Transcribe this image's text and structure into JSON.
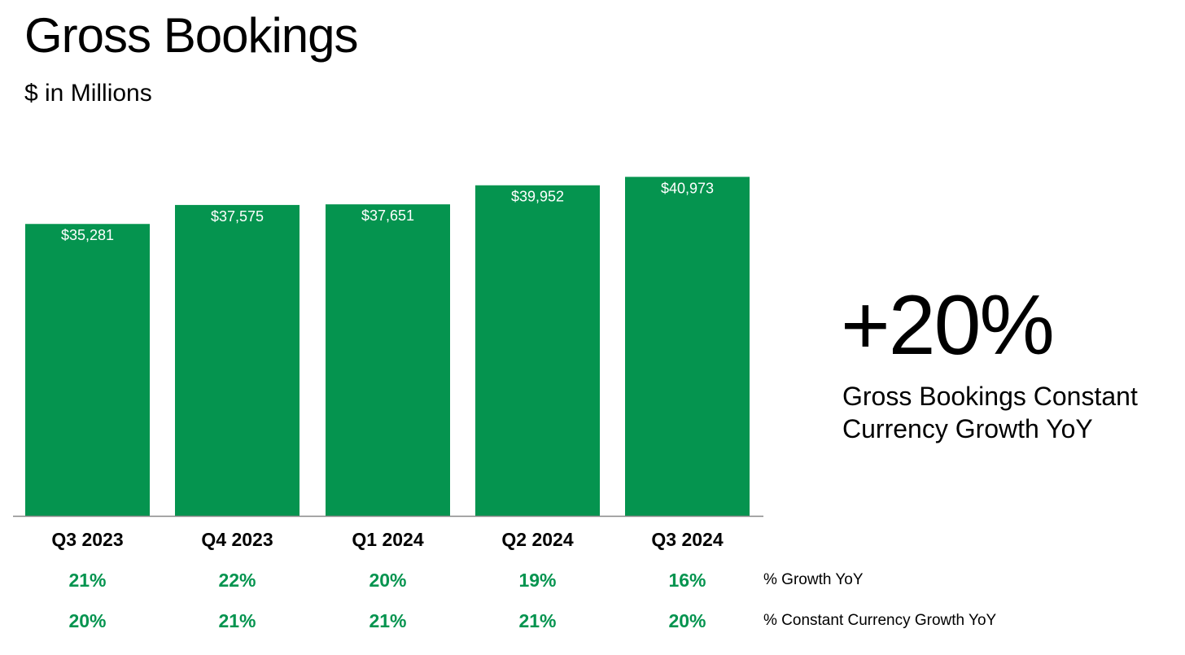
{
  "title": "Gross Bookings",
  "subtitle": "$ in Millions",
  "chart_data": {
    "type": "bar",
    "title": "Gross Bookings",
    "subtitle": "$ in Millions",
    "categories": [
      "Q3 2023",
      "Q4 2023",
      "Q1 2024",
      "Q2 2024",
      "Q3 2024"
    ],
    "values": [
      35281,
      37575,
      37651,
      39952,
      40973
    ],
    "value_labels": [
      "$35,281",
      "$37,575",
      "$37,651",
      "$39,952",
      "$40,973"
    ],
    "ylim": [
      0,
      41500
    ],
    "grid": false,
    "bar_color": "#05944F",
    "rows": [
      {
        "label": "% Growth YoY",
        "values": [
          "21%",
          "22%",
          "20%",
          "19%",
          "16%"
        ]
      },
      {
        "label": "% Constant Currency Growth YoY",
        "values": [
          "20%",
          "21%",
          "21%",
          "21%",
          "20%"
        ]
      }
    ]
  },
  "headline": {
    "value": "+20%",
    "caption": "Gross Bookings Constant Currency Growth YoY"
  },
  "colors": {
    "accent": "#05944F",
    "text": "#000000",
    "baseline": "#888888"
  }
}
